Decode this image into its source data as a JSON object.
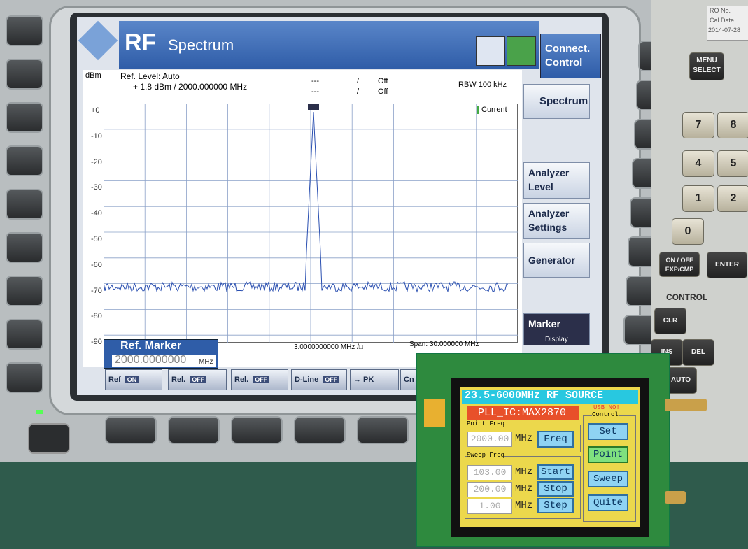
{
  "analyzer": {
    "brand": "RF",
    "title": "Spectrum",
    "connect": "Connect. Control",
    "unit": "dBm",
    "ref_level": "Ref. Level: Auto",
    "ref_value": "+ 1.8 dBm / 2000.000000  MHz",
    "marker1": "---",
    "marker2": "---",
    "slash": "/",
    "off1": "Off",
    "off2": "Off",
    "rbw": "RBW  100 kHz",
    "current": "Current",
    "y_labels": [
      "+0",
      "-10",
      "-20",
      "-30",
      "-40",
      "-50",
      "-60",
      "-70",
      "-80",
      "-90"
    ],
    "per_div": "3.0000000000 MHz /□",
    "span": "Span:   30.000000  MHz",
    "ref_marker": "Ref. Marker",
    "ref_marker_value": "2000.0000000",
    "ref_marker_unit": "MHz",
    "softkeys": [
      "Ref",
      "ON",
      "Rel.",
      "OFF",
      "Rel.",
      "OFF",
      "D-Line",
      "OFF",
      "→ PK",
      "Cn"
    ],
    "menu": [
      "Spectrum",
      "Analyzer Level",
      "Analyzer Settings",
      "Generator",
      "Marker"
    ],
    "marker_sub": "Display"
  },
  "panel": {
    "ro": "RO No.",
    "cal": "Cal Date",
    "date": "2014-07-28",
    "menu_select": "MENU SELECT",
    "keys": [
      "7",
      "8",
      "4",
      "5",
      "1",
      "2",
      "0"
    ],
    "on_off": "ON / OFF EXP/CMP",
    "enter": "ENTER",
    "control": "CONTROL",
    "clr": "CLR",
    "ins": "INS",
    "del": "DEL",
    "auto": "AUTO"
  },
  "rf_source": {
    "title": "23.5-6000MHz RF SOURCE",
    "pll": "PLL_IC:MAX2870",
    "usb": "USB NO!",
    "control": "Control",
    "point_freq": "Point Freq",
    "point_value": "2000.00",
    "mhz": "MHz",
    "freq": "Freq",
    "sweep_freq": "Sweep Freq",
    "start_value": "103.00",
    "stop_value": "200.00",
    "step_value": "1.00",
    "start": "Start",
    "stop": "Stop",
    "step": "Step",
    "set": "Set",
    "point": "Point",
    "sweep": "Sweep",
    "quite": "Quite"
  }
}
